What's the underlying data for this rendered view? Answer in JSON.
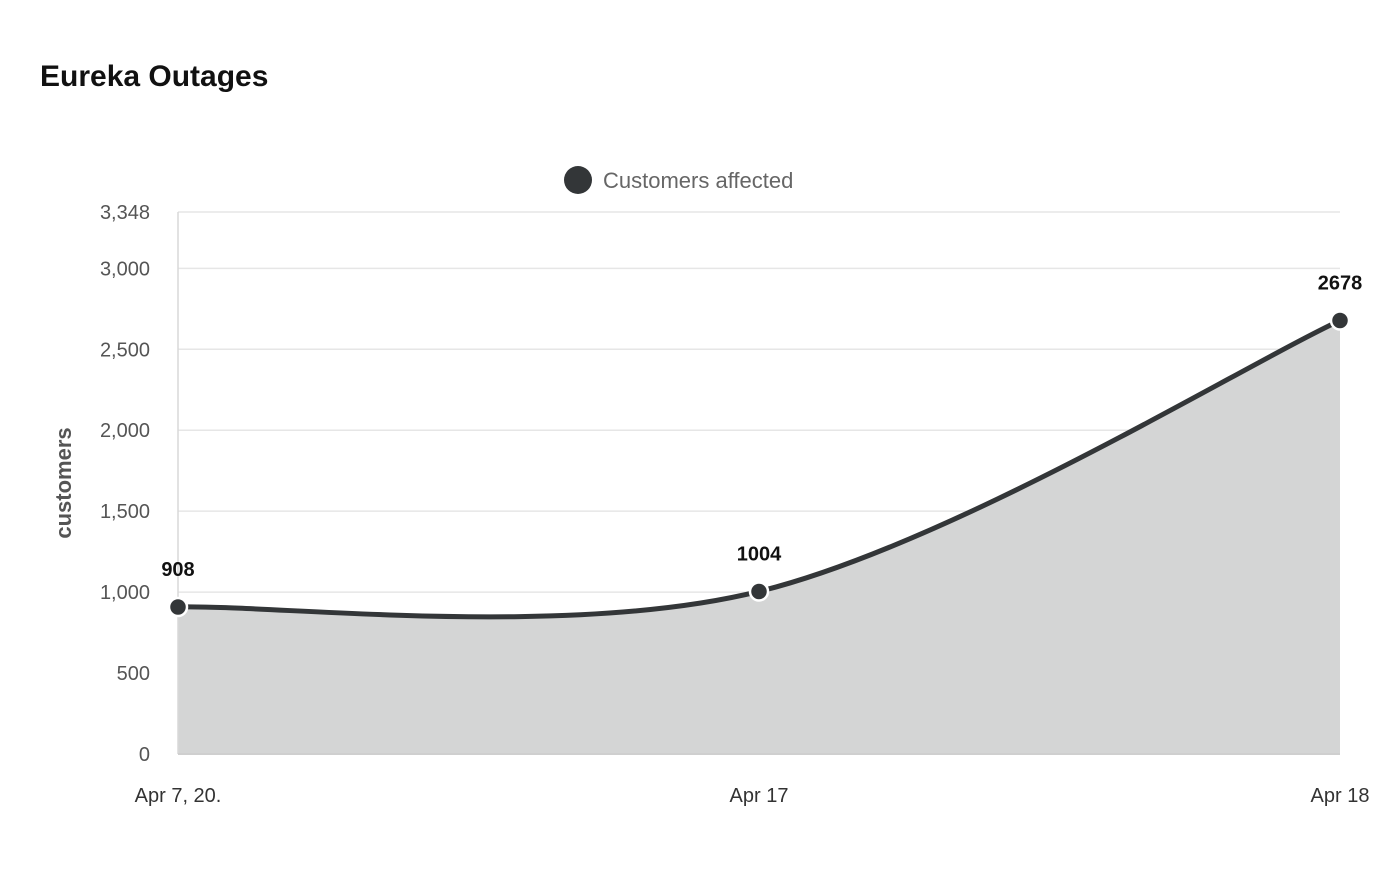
{
  "title": "Eureka Outages",
  "chart_data": {
    "type": "area",
    "title": "Eureka Outages",
    "ylabel": "customers",
    "xlabel": "",
    "categories": [
      "Apr 7, 20.",
      "Apr 17",
      "Apr 18"
    ],
    "series": [
      {
        "name": "Customers affected",
        "values": [
          908,
          1004,
          2678
        ],
        "data_labels": [
          "908",
          "1004",
          "2678"
        ]
      }
    ],
    "ylim": [
      0,
      3348
    ],
    "yticks": [
      0,
      500,
      1000,
      1500,
      2000,
      2500,
      3000,
      3348
    ],
    "ytick_labels": [
      "0",
      "500",
      "1,000",
      "1,500",
      "2,000",
      "2,500",
      "3,000",
      "3,348"
    ],
    "grid": true,
    "legend": "top-center",
    "colors": {
      "line": "#333638",
      "fill": "#d4d5d5",
      "grid": "#e6e6e6",
      "point_stroke": "#ffffff"
    }
  }
}
